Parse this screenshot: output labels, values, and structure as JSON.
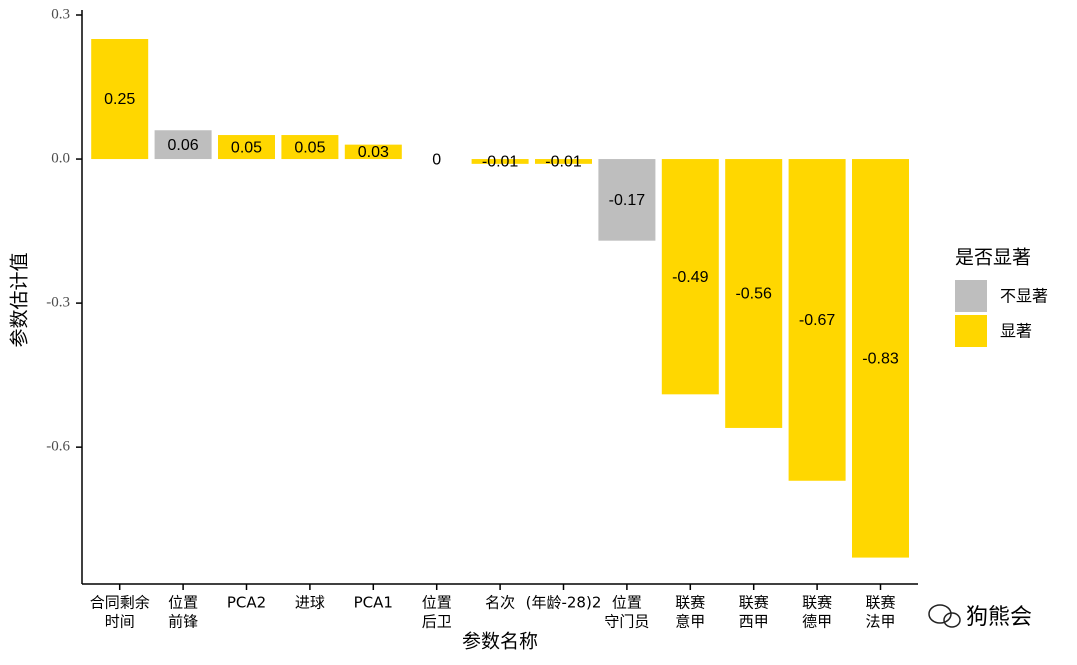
{
  "chart_data": {
    "type": "bar",
    "x_label": "参数名称",
    "y_label": "参数估计值",
    "categories": [
      [
        "合同剩余",
        "时间"
      ],
      [
        "位置",
        "前锋"
      ],
      [
        "PCA2"
      ],
      [
        "进球"
      ],
      [
        "PCA1"
      ],
      [
        "位置",
        "后卫"
      ],
      [
        "名次"
      ],
      [
        "(年龄-28)2"
      ],
      [
        "位置",
        "守门员"
      ],
      [
        "联赛",
        "意甲"
      ],
      [
        "联赛",
        "西甲"
      ],
      [
        "联赛",
        "德甲"
      ],
      [
        "联赛",
        "法甲"
      ]
    ],
    "values": [
      0.25,
      0.06,
      0.05,
      0.05,
      0.03,
      0,
      -0.01,
      -0.01,
      -0.17,
      -0.49,
      -0.56,
      -0.67,
      -0.83
    ],
    "bar_colors": [
      "#ffd700",
      "#bebebe",
      "#ffd700",
      "#ffd700",
      "#ffd700",
      "#bebebe",
      "#ffd700",
      "#ffd700",
      "#bebebe",
      "#ffd700",
      "#ffd700",
      "#ffd700",
      "#ffd700"
    ],
    "ylim": [
      -0.885,
      0.3
    ],
    "yticks": [
      0.3,
      {
        "value": 0,
        "label": "0.0"
      },
      -0.3,
      -0.6
    ],
    "legend": {
      "title": "是否显著",
      "items": [
        {
          "name": "不显著",
          "color": "#bebebe"
        },
        {
          "name": "显著",
          "color": "#ffd700"
        }
      ]
    },
    "watermark": "狗熊会"
  }
}
